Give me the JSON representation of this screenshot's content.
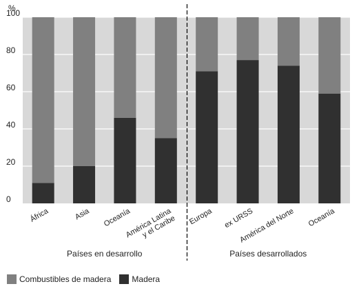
{
  "chart_data": {
    "type": "bar",
    "stacked": true,
    "ylabel": "%",
    "ylim": [
      0,
      100
    ],
    "yticks": [
      0,
      20,
      40,
      60,
      80,
      100
    ],
    "grid": true,
    "legend_position": "bottom-left",
    "categories": [
      "África",
      "Asia",
      "Oceanía",
      "América Latina y el Caribe",
      "Europa",
      "ex URSS",
      "América del Norte",
      "Oceanía"
    ],
    "category_lines": [
      [
        "África"
      ],
      [
        "Asia"
      ],
      [
        "Oceanía"
      ],
      [
        "América Latina",
        "y el Caribe"
      ],
      [
        "Europa"
      ],
      [
        "ex URSS"
      ],
      [
        "América del Norte"
      ],
      [
        "Oceanía"
      ]
    ],
    "groups": [
      {
        "label": "Países en desarrollo",
        "categories": [
          0,
          1,
          2,
          3
        ]
      },
      {
        "label": "Países desarrollados",
        "categories": [
          4,
          5,
          6,
          7
        ]
      }
    ],
    "series": [
      {
        "name": "Madera",
        "color": "#303030",
        "values": [
          11,
          20,
          46,
          35,
          71,
          77,
          74,
          59
        ]
      },
      {
        "name": "Combustibles de madera",
        "color": "#808080",
        "values": [
          89,
          80,
          54,
          65,
          29,
          23,
          26,
          41
        ]
      }
    ],
    "background_color": "#d8d8d8"
  }
}
